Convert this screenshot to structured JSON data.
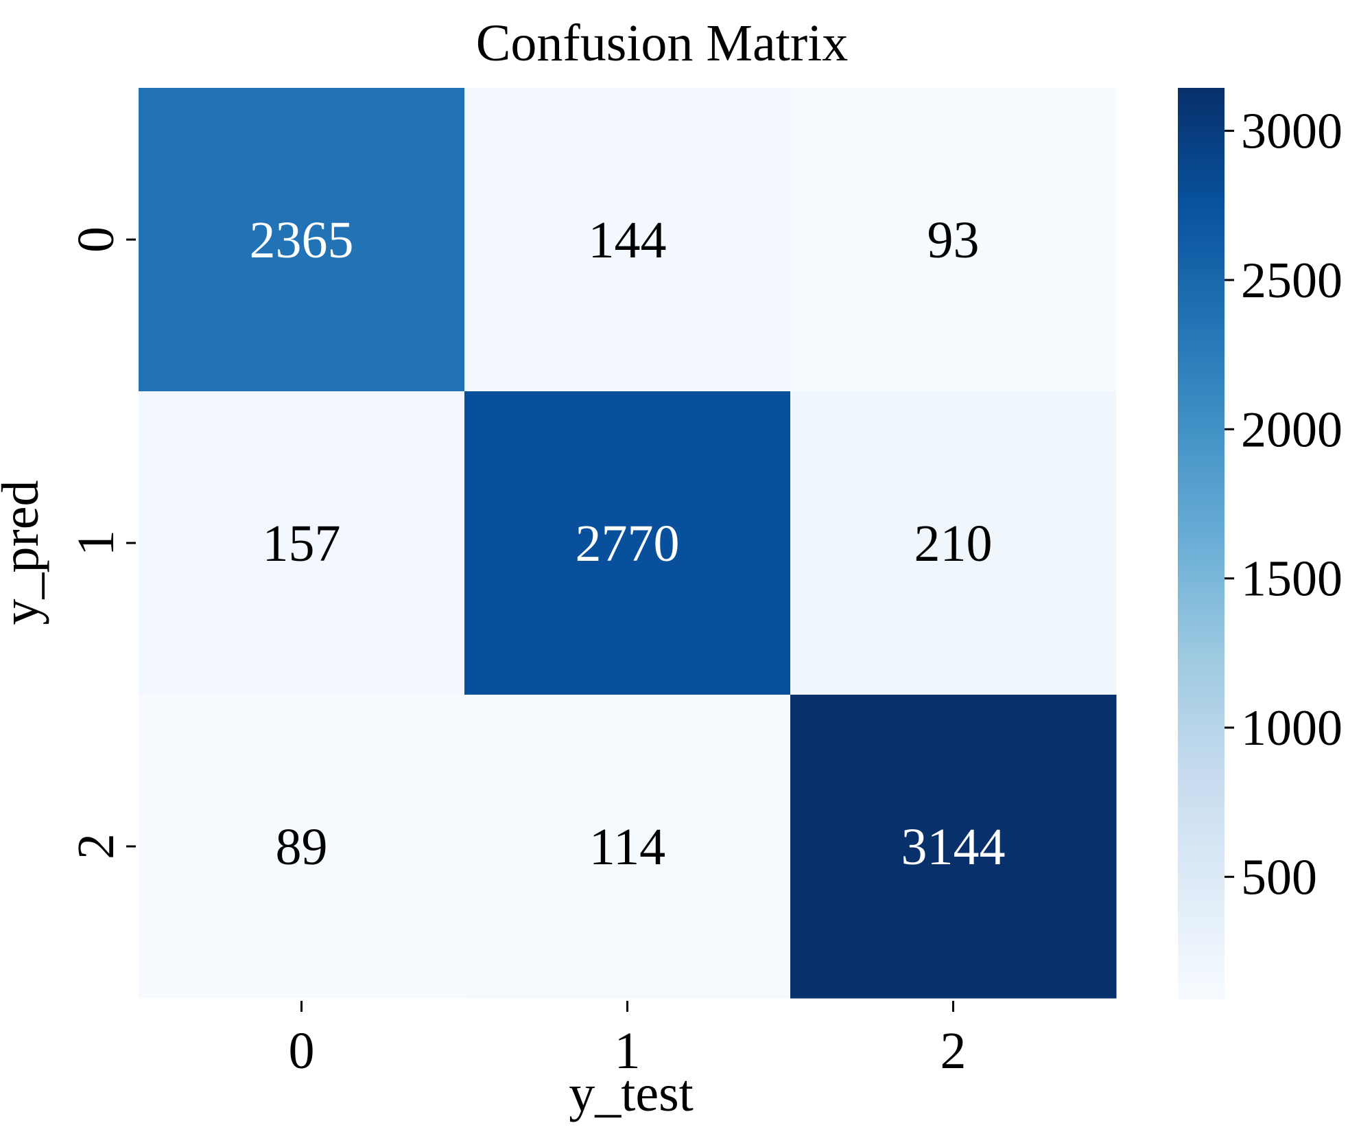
{
  "chart_data": {
    "type": "heatmap",
    "title": "Confusion Matrix",
    "xlabel": "y_test",
    "ylabel": "y_pred",
    "x_categories": [
      "0",
      "1",
      "2"
    ],
    "y_categories": [
      "0",
      "1",
      "2"
    ],
    "values": [
      [
        2365,
        144,
        93
      ],
      [
        157,
        2770,
        210
      ],
      [
        89,
        114,
        3144
      ]
    ],
    "colormap": "Blues",
    "colorbar": {
      "range": [
        89,
        3144
      ],
      "ticks": [
        500,
        1000,
        1500,
        2000,
        2500,
        3000
      ],
      "tick_labels": [
        "500",
        "1000",
        "1500",
        "2000",
        "2500",
        "3000"
      ]
    },
    "colors": {
      "low": "#f7fbff",
      "high": "#08306b"
    }
  }
}
